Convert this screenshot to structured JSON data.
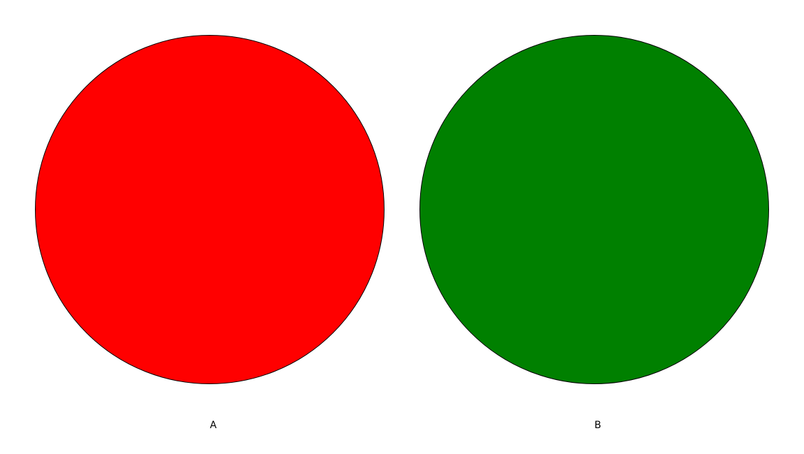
{
  "items": [
    {
      "label": "A",
      "color": "#ff0000"
    },
    {
      "label": "B",
      "color": "#008000"
    }
  ],
  "outline_color": "#000000",
  "background": "#ffffff"
}
